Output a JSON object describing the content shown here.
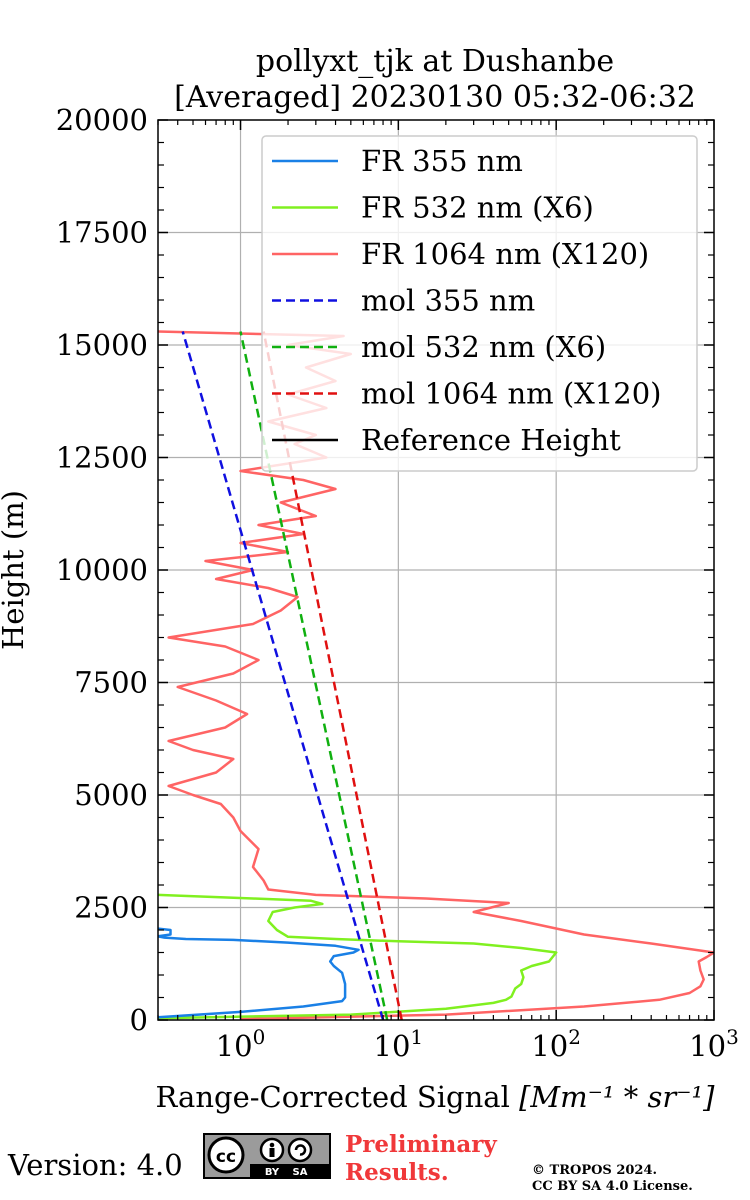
{
  "chart_data": {
    "type": "line",
    "title": "pollyxt_tjk at Dushanbe",
    "subtitle": "[Averaged] 20230130 05:32-06:32",
    "xlabel": "Range-Corrected Signal",
    "xlabel_unit": "[Mm⁻¹ * sr⁻¹]",
    "ylabel": "Height (m)",
    "xscale": "log",
    "xlim": [
      0.3,
      1000
    ],
    "ylim": [
      0,
      20000
    ],
    "grid": true,
    "legend_position": "top-right",
    "x_ticks": [
      {
        "value": 1,
        "base": "10",
        "exp": "0"
      },
      {
        "value": 10,
        "base": "10",
        "exp": "1"
      },
      {
        "value": 100,
        "base": "10",
        "exp": "2"
      },
      {
        "value": 1000,
        "base": "10",
        "exp": "3"
      }
    ],
    "y_ticks": [
      0,
      2500,
      5000,
      7500,
      10000,
      12500,
      15000,
      17500,
      20000
    ],
    "series": [
      {
        "name": "FR 355 nm",
        "color": "#1a80e6",
        "style": "solid",
        "points": [
          [
            0.3,
            60
          ],
          [
            1.0,
            180
          ],
          [
            2.5,
            300
          ],
          [
            4.4,
            420
          ],
          [
            4.6,
            500
          ],
          [
            4.6,
            800
          ],
          [
            4.4,
            1050
          ],
          [
            3.9,
            1200
          ],
          [
            3.7,
            1300
          ],
          [
            3.9,
            1420
          ],
          [
            5.2,
            1500
          ],
          [
            5.6,
            1560
          ],
          [
            4.0,
            1650
          ],
          [
            2.0,
            1720
          ],
          [
            0.9,
            1780
          ],
          [
            0.45,
            1800
          ],
          [
            0.33,
            1830
          ],
          [
            0.3,
            1860
          ],
          [
            0.36,
            1900
          ],
          [
            0.36,
            2000
          ],
          [
            0.3,
            2030
          ]
        ]
      },
      {
        "name": "FR 532 nm (X6)",
        "color": "#80f020",
        "style": "solid",
        "points": [
          [
            0.3,
            40
          ],
          [
            5,
            120
          ],
          [
            20,
            250
          ],
          [
            40,
            380
          ],
          [
            48,
            450
          ],
          [
            52,
            520
          ],
          [
            55,
            700
          ],
          [
            60,
            800
          ],
          [
            62,
            950
          ],
          [
            60,
            1100
          ],
          [
            70,
            1200
          ],
          [
            90,
            1300
          ],
          [
            100,
            1500
          ],
          [
            60,
            1600
          ],
          [
            30,
            1700
          ],
          [
            10,
            1750
          ],
          [
            4,
            1800
          ],
          [
            2.0,
            1850
          ],
          [
            1.7,
            2000
          ],
          [
            1.5,
            2200
          ],
          [
            1.6,
            2400
          ],
          [
            2.2,
            2500
          ],
          [
            3.3,
            2580
          ],
          [
            2.8,
            2650
          ],
          [
            1.2,
            2700
          ],
          [
            0.3,
            2780
          ]
        ]
      },
      {
        "name": "FR 1064 nm (X120)",
        "color": "#ff6464",
        "style": "solid",
        "points": [
          [
            1.0,
            20
          ],
          [
            20,
            120
          ],
          [
            150,
            300
          ],
          [
            450,
            450
          ],
          [
            700,
            600
          ],
          [
            820,
            750
          ],
          [
            860,
            900
          ],
          [
            820,
            1100
          ],
          [
            800,
            1300
          ],
          [
            900,
            1400
          ],
          [
            1000,
            1500
          ],
          [
            400,
            1700
          ],
          [
            150,
            1900
          ],
          [
            60,
            2200
          ],
          [
            30,
            2400
          ],
          [
            50,
            2600
          ],
          [
            15,
            2700
          ],
          [
            3,
            2780
          ],
          [
            1.5,
            2900
          ],
          [
            1.4,
            3100
          ],
          [
            1.2,
            3400
          ],
          [
            1.3,
            3800
          ],
          [
            1.0,
            4200
          ],
          [
            0.9,
            4500
          ],
          [
            0.75,
            4800
          ],
          [
            0.5,
            5000
          ],
          [
            0.35,
            5200
          ],
          [
            0.7,
            5500
          ],
          [
            0.9,
            5800
          ],
          [
            0.5,
            6000
          ],
          [
            0.35,
            6200
          ],
          [
            0.8,
            6500
          ],
          [
            1.1,
            6800
          ],
          [
            0.7,
            7100
          ],
          [
            0.4,
            7400
          ],
          [
            0.9,
            7700
          ],
          [
            1.3,
            8000
          ],
          [
            0.8,
            8300
          ],
          [
            0.35,
            8500
          ],
          [
            1.2,
            8800
          ],
          [
            1.8,
            9100
          ],
          [
            2.3,
            9400
          ],
          [
            1.5,
            9600
          ],
          [
            0.7,
            9800
          ],
          [
            1.2,
            10000
          ],
          [
            0.6,
            10200
          ],
          [
            2.0,
            10400
          ],
          [
            1.0,
            10600
          ],
          [
            2.5,
            10800
          ],
          [
            1.3,
            11000
          ],
          [
            3.0,
            11200
          ],
          [
            1.8,
            11500
          ],
          [
            4.0,
            11800
          ],
          [
            2.5,
            12000
          ],
          [
            1.0,
            12200
          ],
          [
            3.5,
            12500
          ],
          [
            2.2,
            12800
          ],
          [
            3.0,
            13000
          ],
          [
            1.5,
            13300
          ],
          [
            3.5,
            13600
          ],
          [
            2.0,
            13900
          ],
          [
            4.0,
            14200
          ],
          [
            2.6,
            14500
          ],
          [
            5.0,
            14800
          ],
          [
            2.0,
            15000
          ],
          [
            4.5,
            15200
          ],
          [
            0.3,
            15300
          ]
        ]
      },
      {
        "name": "mol 355 nm",
        "color": "#1010e0",
        "style": "dashed",
        "points": [
          [
            8.0,
            0
          ],
          [
            0.43,
            15300
          ]
        ]
      },
      {
        "name": "mol 532 nm (X6)",
        "color": "#10b010",
        "style": "dashed",
        "points": [
          [
            8.5,
            0
          ],
          [
            1.0,
            15300
          ]
        ]
      },
      {
        "name": "mol 1064 nm (X120)",
        "color": "#e01010",
        "style": "dashed",
        "points": [
          [
            10.5,
            0
          ],
          [
            1.4,
            15300
          ]
        ]
      },
      {
        "name": "Reference Height",
        "color": "#000000",
        "style": "solid",
        "points": []
      }
    ]
  },
  "footer": {
    "version": "Version: 4.0",
    "cc_badge": {
      "by": "BY",
      "sa": "SA"
    },
    "preliminary": "Preliminary\nResults.",
    "copyright": "© TROPOS 2024.\nCC BY SA 4.0 License."
  }
}
